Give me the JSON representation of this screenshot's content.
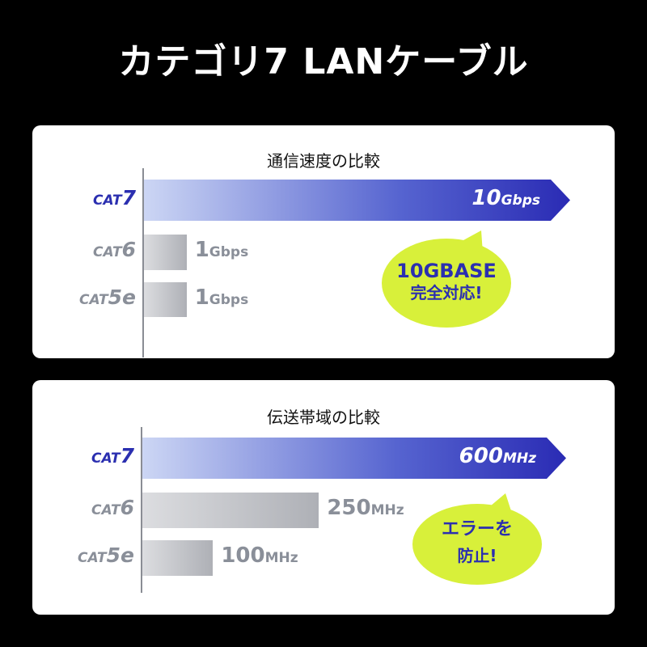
{
  "title": "カテゴリ7 LANケーブル",
  "colors": {
    "cat7": "#2b2fb0",
    "other": "#8a8f99",
    "bubble": "#d8f03a"
  },
  "chart_data": [
    {
      "type": "bar",
      "orientation": "horizontal",
      "title": "通信速度の比較",
      "categories": [
        {
          "prefix": "CAT",
          "num": "7"
        },
        {
          "prefix": "CAT",
          "num": "6"
        },
        {
          "prefix": "CAT",
          "num": "5e"
        }
      ],
      "values": [
        10,
        1,
        1
      ],
      "unit": "Gbps",
      "labels": [
        {
          "n": "10",
          "u": "Gbps"
        },
        {
          "n": "1",
          "u": "Gbps"
        },
        {
          "n": "1",
          "u": "Gbps"
        }
      ],
      "annotation": {
        "line1": "10GBASE",
        "line2": "完全対応!"
      }
    },
    {
      "type": "bar",
      "orientation": "horizontal",
      "title": "伝送帯域の比較",
      "categories": [
        {
          "prefix": "CAT",
          "num": "7"
        },
        {
          "prefix": "CAT",
          "num": "6"
        },
        {
          "prefix": "CAT",
          "num": "5e"
        }
      ],
      "values": [
        600,
        250,
        100
      ],
      "unit": "MHz",
      "labels": [
        {
          "n": "600",
          "u": "MHz"
        },
        {
          "n": "250",
          "u": "MHz"
        },
        {
          "n": "100",
          "u": "MHz"
        }
      ],
      "annotation": {
        "line1": "エラーを",
        "line2": "防止!"
      }
    }
  ]
}
